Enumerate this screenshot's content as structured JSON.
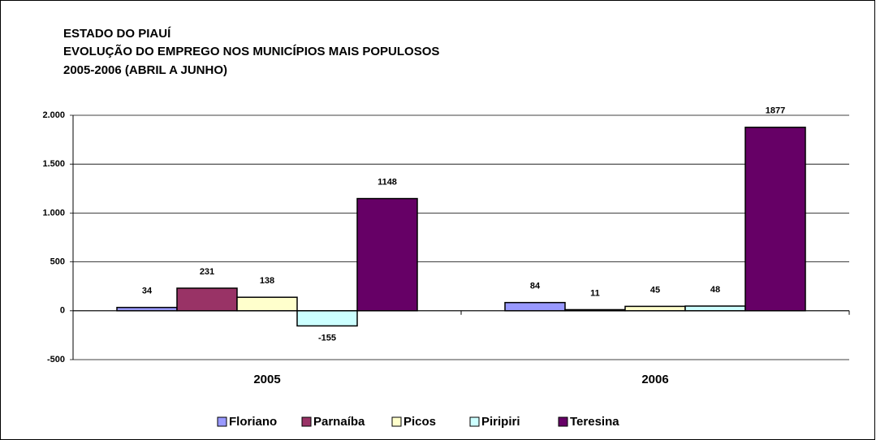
{
  "chart_data": {
    "type": "bar",
    "title": "ESTADO DO PIAUÍ",
    "subtitle": [
      "EVOLUÇÃO DO EMPREGO NOS MUNICÍPIOS MAIS POPULOSOS",
      "2005-2006 (ABRIL A JUNHO)"
    ],
    "categories": [
      "2005",
      "2006"
    ],
    "series": [
      {
        "name": "Floriano",
        "color": "#9999ff",
        "values": [
          34,
          84
        ]
      },
      {
        "name": "Parnaíba",
        "color": "#993366",
        "values": [
          231,
          11
        ]
      },
      {
        "name": "Picos",
        "color": "#ffffcc",
        "values": [
          138,
          45
        ]
      },
      {
        "name": "Piripiri",
        "color": "#ccffff",
        "values": [
          -155,
          48
        ]
      },
      {
        "name": "Teresina",
        "color": "#660066",
        "values": [
          1148,
          1877
        ]
      }
    ],
    "ylim": [
      -500,
      2000
    ],
    "yticks": [
      -500,
      0,
      500,
      {
        "value": 1000,
        "label": "1.000"
      },
      {
        "value": 1500,
        "label": "1.500"
      },
      {
        "value": 2000,
        "label": "2.000"
      }
    ],
    "grid": true,
    "legend": "bottom"
  }
}
